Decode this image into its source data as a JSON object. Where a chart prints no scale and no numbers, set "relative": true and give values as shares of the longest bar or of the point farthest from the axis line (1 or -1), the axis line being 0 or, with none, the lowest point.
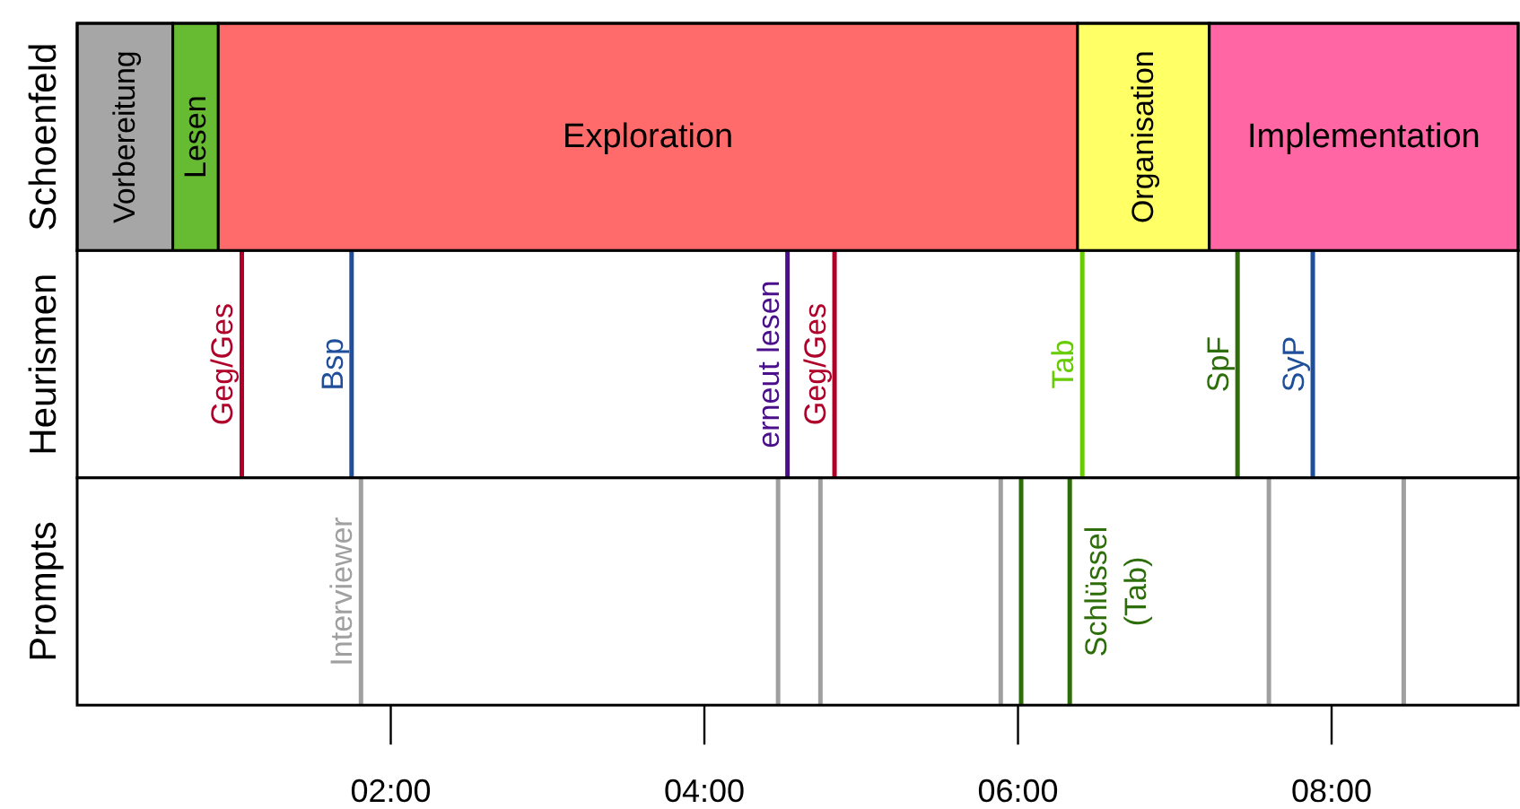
{
  "chart_data": [
    {
      "type": "bar",
      "orientation": "horizontal",
      "stacked": true,
      "ylabel": "Schoenfeld",
      "categories": [
        null
      ],
      "xlim": [
        0,
        9.19
      ],
      "tick_labels": false,
      "series": [
        {
          "name": "Vorbereitung",
          "color": "#a6a6a6",
          "values": [
            0.61
          ]
        },
        {
          "name": "Lesen",
          "color": "#66bb33",
          "values": [
            0.29
          ]
        },
        {
          "name": "Exploration",
          "color": "#ff6b6b",
          "values": [
            5.48
          ]
        },
        {
          "name": "Organisation",
          "color": "#ffff66",
          "values": [
            0.84
          ]
        },
        {
          "name": "Implementation",
          "color": "#ff66a3",
          "values": [
            1.97
          ]
        }
      ]
    },
    {
      "type": "line",
      "relative": true,
      "ylabel": "Heurismen",
      "xlim": [
        0,
        9.19
      ],
      "tick_labels": false,
      "series": [
        {
          "name": "Geg/Ges",
          "color": "#b0002a",
          "x": [
            1.05,
            1.05
          ],
          "values": [
            0,
            1
          ]
        },
        {
          "name": "Bsp",
          "color": "#1f4e9a",
          "x": [
            1.75,
            1.75
          ],
          "values": [
            0,
            1
          ]
        },
        {
          "name": "erneut lesen",
          "color": "#4b0f8c",
          "x": [
            4.53,
            4.53
          ],
          "values": [
            0,
            1
          ]
        },
        {
          "name": "Geg/Ges",
          "color": "#b0002a",
          "x": [
            4.83,
            4.83
          ],
          "values": [
            0,
            1
          ]
        },
        {
          "name": "Tab",
          "color": "#66cc00",
          "x": [
            6.41,
            6.41
          ],
          "values": [
            0,
            1
          ]
        },
        {
          "name": "SpF",
          "color": "#2e6e0a",
          "x": [
            7.4,
            7.4
          ],
          "values": [
            0,
            1
          ]
        },
        {
          "name": "SyP",
          "color": "#1f4e9a",
          "x": [
            7.88,
            7.88
          ],
          "values": [
            0,
            1
          ]
        }
      ]
    },
    {
      "type": "line",
      "relative": true,
      "ylabel": "Prompts",
      "xlim": [
        0,
        9.19
      ],
      "tick_labels": "x",
      "xticks": [
        {
          "value": 2,
          "label": "02:00"
        },
        {
          "value": 4,
          "label": "04:00"
        },
        {
          "value": 6,
          "label": "06:00"
        },
        {
          "value": 8,
          "label": "08:00"
        }
      ],
      "series": [
        {
          "name": "Interviewer",
          "color": "#a0a0a0",
          "x": [
            1.81,
            1.81
          ],
          "values": [
            0,
            1
          ]
        },
        {
          "color": "#a0a0a0",
          "x": [
            4.47,
            4.47
          ],
          "values": [
            0,
            1
          ]
        },
        {
          "color": "#a0a0a0",
          "x": [
            4.74,
            4.74
          ],
          "values": [
            0,
            1
          ]
        },
        {
          "color": "#a0a0a0",
          "x": [
            5.89,
            5.89
          ],
          "values": [
            0,
            1
          ]
        },
        {
          "color": "#2e6e0a",
          "x": [
            6.02,
            6.02
          ],
          "values": [
            0,
            1
          ]
        },
        {
          "name": "Schlüssel\n(Tab)",
          "color": "#2e6e0a",
          "x": [
            6.33,
            6.33
          ],
          "values": [
            0,
            1
          ]
        },
        {
          "color": "#a0a0a0",
          "x": [
            7.6,
            7.6
          ],
          "values": [
            0,
            1
          ]
        },
        {
          "color": "#a0a0a0",
          "x": [
            8.46,
            8.46
          ],
          "values": [
            0,
            1
          ]
        }
      ]
    }
  ]
}
